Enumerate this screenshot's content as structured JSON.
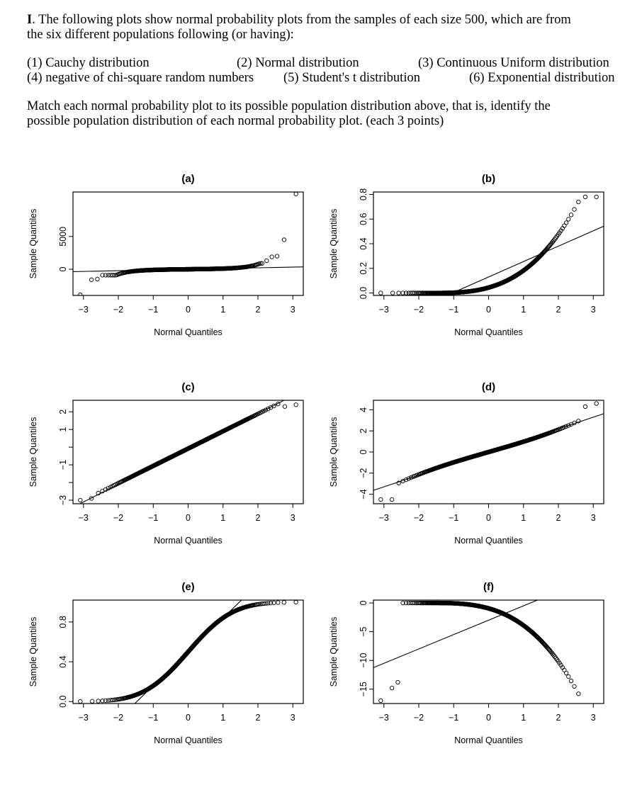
{
  "question": {
    "number": "I",
    "intro_line1": ". The following plots show normal probability plots from the samples of each size 500, which are from",
    "intro_line2": "the six different populations following (or having):",
    "options": [
      "(1)  Cauchy distribution",
      "(2) Normal distribution",
      "(3) Continuous Uniform distribution",
      "(4)  negative of chi-square random numbers",
      "(5) Student's t distribution",
      "(6) Exponential distribution"
    ],
    "instruction_line1": "Match each normal probability plot to its possible population distribution above, that is, identify the",
    "instruction_line2": "possible population distribution of each  normal probability plot. (each 3 points)"
  },
  "chart_data": [
    {
      "type": "scatter",
      "id": "a",
      "title": "(a)",
      "xlabel": "Normal Quantiles",
      "ylabel": "Sample Quantiles",
      "xlim": [
        -3.3,
        3.3
      ],
      "ylim": [
        -4000,
        11800
      ],
      "xticks": [
        -3,
        -2,
        -1,
        0,
        1,
        2,
        3
      ],
      "yticks": [
        0,
        5000
      ],
      "ytick_labels": [
        "0",
        "5000"
      ],
      "shape": "cauchy",
      "reference_line": {
        "slope": 110,
        "intercept": 0
      }
    },
    {
      "type": "scatter",
      "id": "b",
      "title": "(b)",
      "xlabel": "Normal Quantiles",
      "ylabel": "Sample Quantiles",
      "xlim": [
        -3.3,
        3.3
      ],
      "ylim": [
        -0.02,
        0.82
      ],
      "xticks": [
        -3,
        -2,
        -1,
        0,
        1,
        2,
        3
      ],
      "yticks": [
        0.0,
        0.2,
        0.4,
        0.6,
        0.8
      ],
      "ytick_labels": [
        "0.0",
        "0.2",
        "0.4",
        "0.6",
        "0.8"
      ],
      "shape": "chisq_pos",
      "reference_line": {
        "slope": 0.125,
        "intercept": 0.13
      }
    },
    {
      "type": "scatter",
      "id": "c",
      "title": "(c)",
      "xlabel": "Normal Quantiles",
      "ylabel": "Sample Quantiles",
      "xlim": [
        -3.3,
        3.3
      ],
      "ylim": [
        -3.2,
        2.65
      ],
      "xticks": [
        -3,
        -2,
        -1,
        0,
        1,
        2,
        3
      ],
      "yticks": [
        -3,
        -2,
        -1,
        0,
        1,
        2
      ],
      "ytick_labels": [
        "−3",
        "",
        "−1",
        "",
        "1",
        "2"
      ],
      "shape": "normal",
      "reference_line": {
        "slope": 1.0,
        "intercept": -0.1
      }
    },
    {
      "type": "scatter",
      "id": "d",
      "title": "(d)",
      "xlabel": "Normal Quantiles",
      "ylabel": "Sample Quantiles",
      "xlim": [
        -3.3,
        3.3
      ],
      "ylim": [
        -4.9,
        4.9
      ],
      "xticks": [
        -3,
        -2,
        -1,
        0,
        1,
        2,
        3
      ],
      "yticks": [
        -4,
        -2,
        0,
        2,
        4
      ],
      "ytick_labels": [
        "−4",
        "−2",
        "0",
        "2",
        "4"
      ],
      "shape": "t",
      "reference_line": {
        "slope": 1.1,
        "intercept": 0
      }
    },
    {
      "type": "scatter",
      "id": "e",
      "title": "(e)",
      "xlabel": "Normal Quantiles",
      "ylabel": "Sample Quantiles",
      "xlim": [
        -3.3,
        3.3
      ],
      "ylim": [
        -0.02,
        1.02
      ],
      "xticks": [
        -3,
        -2,
        -1,
        0,
        1,
        2,
        3
      ],
      "yticks": [
        0.0,
        0.4,
        0.8
      ],
      "ytick_labels": [
        "0.0",
        "0.4",
        "0.8"
      ],
      "shape": "uniform",
      "reference_line": {
        "slope": 0.34,
        "intercept": 0.5
      }
    },
    {
      "type": "scatter",
      "id": "f",
      "title": "(f)",
      "xlabel": "Normal Quantiles",
      "ylabel": "Sample Quantiles",
      "xlim": [
        -3.3,
        3.3
      ],
      "ylim": [
        -17.5,
        0.5
      ],
      "xticks": [
        -3,
        -2,
        -1,
        0,
        1,
        2,
        3
      ],
      "yticks": [
        -15,
        -10,
        -5,
        0
      ],
      "ytick_labels": [
        "−15",
        "−10",
        "−5",
        "0"
      ],
      "shape": "neg_chisq",
      "reference_line": {
        "slope": 2.5,
        "intercept": -3.0
      }
    }
  ]
}
